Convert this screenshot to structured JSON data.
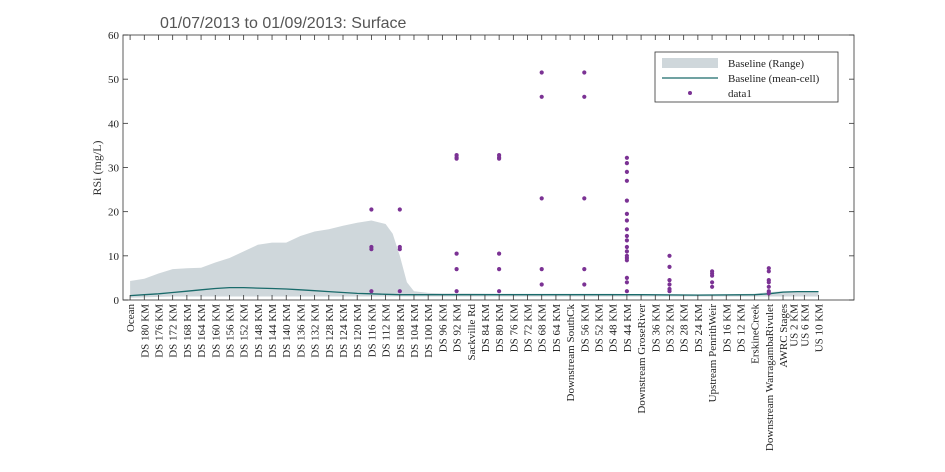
{
  "chart_data": {
    "type": "line",
    "title": "01/07/2013 to 01/09/2013: Surface",
    "xlabel": "",
    "ylabel": "RSi (mg/L)",
    "ylim": [
      0,
      60
    ],
    "yticks": [
      0,
      10,
      20,
      30,
      40,
      50,
      60
    ],
    "legend_position": "top-right",
    "grid": false,
    "colors": {
      "range": "#cfd7db",
      "mean": "#1a6b6b",
      "data": "#7b3294",
      "axis": "#333333"
    },
    "categories": [
      "Ocean",
      "DS 180 KM",
      "DS 176 KM",
      "DS 172 KM",
      "DS 168 KM",
      "DS 164 KM",
      "DS 160 KM",
      "DS 156 KM",
      "DS 152 KM",
      "DS 148 KM",
      "DS 144 KM",
      "DS 140 KM",
      "DS 136 KM",
      "DS 132 KM",
      "DS 128 KM",
      "DS 124 KM",
      "DS 120 KM",
      "DS 116 KM",
      "DS 112 KM",
      "DS 108 KM",
      "DS 104 KM",
      "DS 100 KM",
      "DS 96 KM",
      "DS 92 KM",
      "Sackville Rd",
      "DS 84 KM",
      "DS 80 KM",
      "DS 76 KM",
      "DS 72 KM",
      "DS 68 KM",
      "DS 64 KM",
      "Downstream SouthCk",
      "DS 56 KM",
      "DS 52 KM",
      "DS 48 KM",
      "DS 44 KM",
      "Downstream GroseRiver",
      "DS 36 KM",
      "DS 32 KM",
      "DS 28 KM",
      "DS 24 KM",
      "Upstream PenrithWeir",
      "DS 16 KM",
      "DS 12 KM",
      "ErskineCreek",
      "Downstream WarragambaRivulet",
      "AWRC Stages",
      "US 2 KM",
      "US 6 KM",
      "US 10 KM"
    ],
    "category_positions": [
      0,
      2,
      4,
      6,
      8,
      10,
      12,
      14,
      16,
      18,
      20,
      22,
      24,
      26,
      28,
      30,
      32,
      34,
      36,
      38,
      40,
      42,
      44,
      46,
      48,
      50,
      52,
      54,
      56,
      58,
      60,
      62,
      64,
      66,
      68,
      70,
      72,
      74,
      76,
      78,
      80,
      82,
      84,
      86,
      88,
      90,
      92,
      93.5,
      95,
      97
    ],
    "series": [
      {
        "name": "Baseline (Range)",
        "type": "area",
        "x": [
          0,
          2,
          4,
          6,
          8,
          10,
          12,
          14,
          16,
          18,
          20,
          22,
          24,
          26,
          28,
          30,
          32,
          34,
          36,
          37,
          38,
          39,
          40,
          42,
          44,
          46,
          48,
          52,
          56,
          60,
          64,
          68,
          72,
          76,
          80,
          84,
          88,
          90,
          92,
          94,
          97
        ],
        "upper": [
          4.3,
          4.8,
          6.0,
          7.0,
          7.2,
          7.3,
          8.5,
          9.5,
          11.0,
          12.5,
          13.0,
          13.0,
          14.5,
          15.5,
          16.0,
          16.8,
          17.5,
          18.0,
          17.2,
          15.0,
          10.0,
          4.0,
          2.0,
          1.6,
          1.5,
          1.5,
          1.5,
          1.4,
          1.4,
          1.4,
          1.4,
          1.4,
          1.3,
          1.3,
          1.3,
          1.3,
          1.4,
          1.8,
          2.0,
          2.0,
          2.0
        ],
        "lower": [
          0.5,
          0.6,
          0.7,
          0.8,
          0.8,
          0.8,
          0.8,
          0.8,
          0.8,
          0.8,
          0.8,
          0.8,
          0.8,
          0.8,
          0.8,
          0.8,
          0.8,
          0.8,
          0.8,
          0.8,
          0.8,
          0.8,
          0.8,
          0.8,
          0.8,
          0.8,
          0.8,
          0.8,
          0.8,
          0.8,
          0.8,
          0.8,
          0.8,
          0.8,
          0.8,
          0.8,
          0.8,
          0.8,
          0.8,
          0.8,
          0.8
        ]
      },
      {
        "name": "Baseline (mean-cell)",
        "type": "line",
        "x": [
          0,
          2,
          4,
          6,
          8,
          10,
          12,
          14,
          16,
          18,
          20,
          22,
          24,
          26,
          28,
          30,
          32,
          34,
          36,
          38,
          40,
          44,
          48,
          56,
          64,
          72,
          80,
          88,
          90,
          92,
          94,
          97
        ],
        "y": [
          1.0,
          1.2,
          1.4,
          1.7,
          2.0,
          2.3,
          2.6,
          2.8,
          2.8,
          2.7,
          2.6,
          2.5,
          2.3,
          2.1,
          1.9,
          1.7,
          1.5,
          1.4,
          1.3,
          1.2,
          1.2,
          1.2,
          1.2,
          1.2,
          1.2,
          1.2,
          1.1,
          1.2,
          1.4,
          1.8,
          1.9,
          1.9
        ]
      },
      {
        "name": "data1",
        "type": "scatter",
        "points": [
          [
            34,
            20.5
          ],
          [
            34,
            12
          ],
          [
            34,
            11.5
          ],
          [
            34,
            2
          ],
          [
            38,
            20.5
          ],
          [
            38,
            12
          ],
          [
            38,
            11.5
          ],
          [
            38,
            2
          ],
          [
            46,
            32.8
          ],
          [
            46,
            32.3
          ],
          [
            46,
            32
          ],
          [
            46,
            10.5
          ],
          [
            46,
            7
          ],
          [
            46,
            2
          ],
          [
            52,
            32.8
          ],
          [
            52,
            32.3
          ],
          [
            52,
            32
          ],
          [
            52,
            10.5
          ],
          [
            52,
            7
          ],
          [
            52,
            2
          ],
          [
            58,
            51.5
          ],
          [
            58,
            46
          ],
          [
            58,
            23
          ],
          [
            58,
            7
          ],
          [
            58,
            3.5
          ],
          [
            64,
            51.5
          ],
          [
            64,
            46
          ],
          [
            64,
            23
          ],
          [
            64,
            7
          ],
          [
            64,
            3.5
          ],
          [
            70,
            32.2
          ],
          [
            70,
            31
          ],
          [
            70,
            29
          ],
          [
            70,
            27
          ],
          [
            70,
            22.5
          ],
          [
            70,
            19.5
          ],
          [
            70,
            18
          ],
          [
            70,
            16
          ],
          [
            70,
            14.5
          ],
          [
            70,
            13.5
          ],
          [
            70,
            12
          ],
          [
            70,
            11
          ],
          [
            70,
            10
          ],
          [
            70,
            9.5
          ],
          [
            70,
            9
          ],
          [
            70,
            5
          ],
          [
            70,
            4
          ],
          [
            70,
            2
          ],
          [
            76,
            10
          ],
          [
            76,
            7.5
          ],
          [
            76,
            4.5
          ],
          [
            76,
            3.5
          ],
          [
            76,
            2.5
          ],
          [
            76,
            2
          ],
          [
            82,
            6.5
          ],
          [
            82,
            6
          ],
          [
            82,
            5.5
          ],
          [
            82,
            4
          ],
          [
            82,
            3
          ],
          [
            90,
            7.2
          ],
          [
            90,
            6.5
          ],
          [
            90,
            4.5
          ],
          [
            90,
            4
          ],
          [
            90,
            3
          ],
          [
            90,
            2
          ],
          [
            90,
            1.5
          ]
        ]
      }
    ]
  }
}
